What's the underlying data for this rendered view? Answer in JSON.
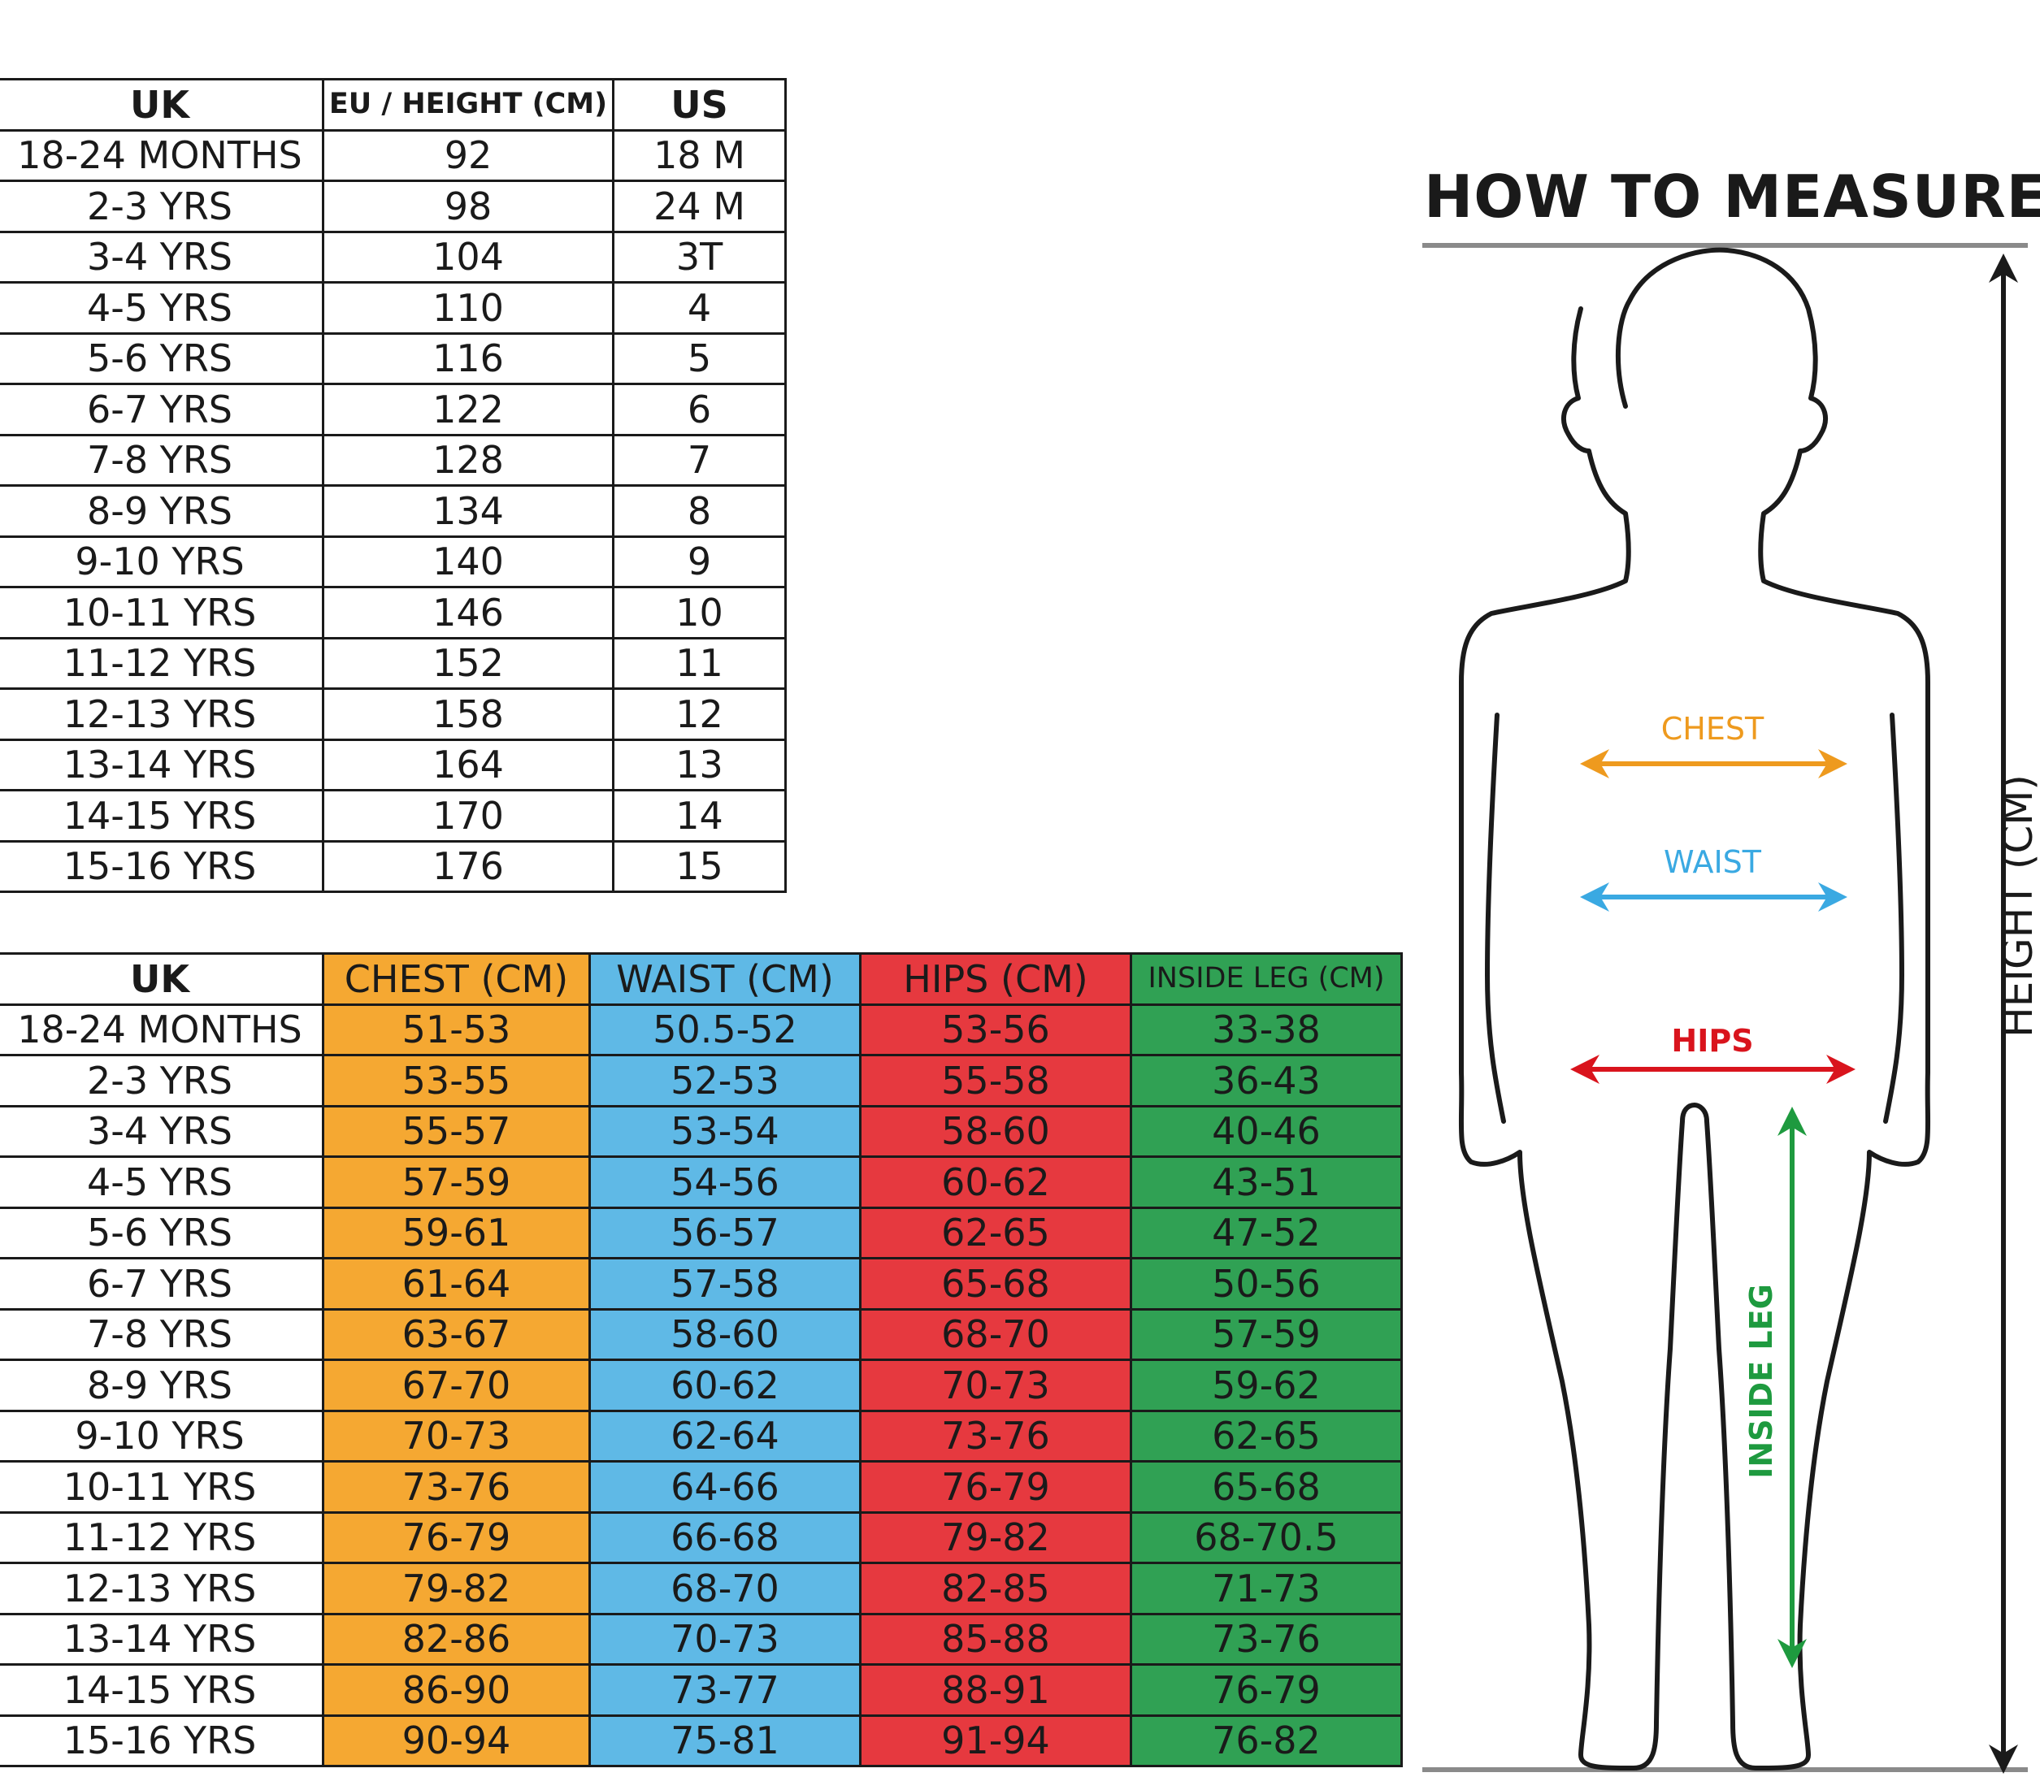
{
  "size_table": {
    "headers": [
      "UK",
      "EU / HEIGHT (CM)",
      "US"
    ],
    "rows": [
      [
        "18-24 MONTHS",
        "92",
        "18 M"
      ],
      [
        "2-3 YRS",
        "98",
        "24 M"
      ],
      [
        "3-4 YRS",
        "104",
        "3T"
      ],
      [
        "4-5 YRS",
        "110",
        "4"
      ],
      [
        "5-6 YRS",
        "116",
        "5"
      ],
      [
        "6-7 YRS",
        "122",
        "6"
      ],
      [
        "7-8 YRS",
        "128",
        "7"
      ],
      [
        "8-9 YRS",
        "134",
        "8"
      ],
      [
        "9-10 YRS",
        "140",
        "9"
      ],
      [
        "10-11 YRS",
        "146",
        "10"
      ],
      [
        "11-12 YRS",
        "152",
        "11"
      ],
      [
        "12-13 YRS",
        "158",
        "12"
      ],
      [
        "13-14 YRS",
        "164",
        "13"
      ],
      [
        "14-15 YRS",
        "170",
        "14"
      ],
      [
        "15-16 YRS",
        "176",
        "15"
      ]
    ]
  },
  "measure_table": {
    "headers": [
      "UK",
      "CHEST (CM)",
      "WAIST (CM)",
      "HIPS (CM)",
      "INSIDE LEG (CM)"
    ],
    "rows": [
      [
        "18-24 MONTHS",
        "51-53",
        "50.5-52",
        "53-56",
        "33-38"
      ],
      [
        "2-3 YRS",
        "53-55",
        "52-53",
        "55-58",
        "36-43"
      ],
      [
        "3-4 YRS",
        "55-57",
        "53-54",
        "58-60",
        "40-46"
      ],
      [
        "4-5 YRS",
        "57-59",
        "54-56",
        "60-62",
        "43-51"
      ],
      [
        "5-6 YRS",
        "59-61",
        "56-57",
        "62-65",
        "47-52"
      ],
      [
        "6-7 YRS",
        "61-64",
        "57-58",
        "65-68",
        "50-56"
      ],
      [
        "7-8 YRS",
        "63-67",
        "58-60",
        "68-70",
        "57-59"
      ],
      [
        "8-9 YRS",
        "67-70",
        "60-62",
        "70-73",
        "59-62"
      ],
      [
        "9-10 YRS",
        "70-73",
        "62-64",
        "73-76",
        "62-65"
      ],
      [
        "10-11 YRS",
        "73-76",
        "64-66",
        "76-79",
        "65-68"
      ],
      [
        "11-12 YRS",
        "76-79",
        "66-68",
        "79-82",
        "68-70.5"
      ],
      [
        "12-13 YRS",
        "79-82",
        "68-70",
        "82-85",
        "71-73"
      ],
      [
        "13-14 YRS",
        "82-86",
        "70-73",
        "85-88",
        "73-76"
      ],
      [
        "14-15 YRS",
        "86-90",
        "73-77",
        "88-91",
        "76-79"
      ],
      [
        "15-16 YRS",
        "90-94",
        "75-81",
        "91-94",
        "76-82"
      ]
    ]
  },
  "figure": {
    "title": "HOW TO MEASURE",
    "height_label": "HEIGHT (CM)",
    "chest_label": "CHEST",
    "waist_label": "WAIST",
    "hips_label": "HIPS",
    "inside_leg_label": "INSIDE LEG"
  },
  "colors": {
    "chest": "#f5a832",
    "waist": "#5fb9e6",
    "hips": "#e6393f",
    "inside_leg": "#30a154",
    "chest_arrow": "#ee9a1e",
    "waist_arrow": "#3aa9e2",
    "hips_arrow": "#d9141d",
    "leg_arrow": "#1e9a3f"
  }
}
